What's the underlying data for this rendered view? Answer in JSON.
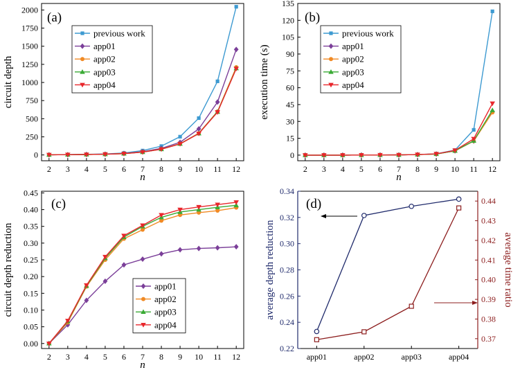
{
  "chart_data": [
    {
      "type": "line",
      "panel_label": "(a)",
      "xlabel": "n",
      "ylabel": "circuit depth",
      "x": [
        2,
        3,
        4,
        5,
        6,
        7,
        8,
        9,
        10,
        11,
        12
      ],
      "xlim": [
        1.6,
        12.4
      ],
      "ylim": [
        -80,
        2090
      ],
      "xticks": [
        "2",
        "3",
        "4",
        "5",
        "6",
        "7",
        "8",
        "9",
        "10",
        "11",
        "12"
      ],
      "yticks": [
        "0",
        "250",
        "500",
        "750",
        "1000",
        "1250",
        "1500",
        "1750",
        "2000"
      ],
      "legend_position": "upper-left",
      "series": [
        {
          "name": "previous work",
          "color": "#3d9ad1",
          "marker": "square",
          "values": [
            2,
            5,
            9,
            14,
            27,
            60,
            122,
            252,
            508,
            1016,
            2045
          ]
        },
        {
          "name": "app01",
          "color": "#7b3f99",
          "marker": "diamond",
          "values": [
            2,
            4,
            7,
            11,
            21,
            45,
            91,
            175,
            360,
            730,
            1455
          ]
        },
        {
          "name": "app02",
          "color": "#f08a24",
          "marker": "circle",
          "values": [
            2,
            4,
            6,
            10,
            19,
            40,
            80,
            155,
            300,
            600,
            1210
          ]
        },
        {
          "name": "app03",
          "color": "#3aaa35",
          "marker": "triangle-up",
          "values": [
            2,
            4,
            6,
            10,
            19,
            40,
            80,
            153,
            297,
            595,
            1195
          ]
        },
        {
          "name": "app04",
          "color": "#e8262b",
          "marker": "triangle-down",
          "values": [
            2,
            4,
            6,
            10,
            18,
            39,
            79,
            152,
            295,
            590,
            1190
          ]
        }
      ]
    },
    {
      "type": "line",
      "panel_label": "(b)",
      "xlabel": "n",
      "ylabel": "execution time (s)",
      "x": [
        2,
        3,
        4,
        5,
        6,
        7,
        8,
        9,
        10,
        11,
        12
      ],
      "xlim": [
        1.6,
        12.4
      ],
      "ylim": [
        -5,
        135
      ],
      "xticks": [
        "2",
        "3",
        "4",
        "5",
        "6",
        "7",
        "8",
        "9",
        "10",
        "11",
        "12"
      ],
      "yticks": [
        "0",
        "15",
        "30",
        "45",
        "60",
        "75",
        "90",
        "105",
        "120",
        "135"
      ],
      "legend_position": "upper-left",
      "series": [
        {
          "name": "previous work",
          "color": "#3d9ad1",
          "marker": "square",
          "values": [
            0,
            0,
            0,
            0.05,
            0.1,
            0.2,
            0.5,
            1.2,
            4.5,
            22.5,
            128
          ]
        },
        {
          "name": "app01",
          "color": "#7b3f99",
          "marker": "diamond",
          "values": [
            0,
            0,
            0,
            0.05,
            0.1,
            0.2,
            0.5,
            1.0,
            3.8,
            12.5,
            39
          ]
        },
        {
          "name": "app02",
          "color": "#f08a24",
          "marker": "circle",
          "values": [
            0,
            0,
            0,
            0.05,
            0.1,
            0.2,
            0.5,
            1.0,
            3.8,
            12.5,
            38
          ]
        },
        {
          "name": "app03",
          "color": "#3aaa35",
          "marker": "triangle-up",
          "values": [
            0,
            0,
            0,
            0.05,
            0.1,
            0.2,
            0.5,
            1.0,
            3.8,
            12.8,
            40
          ]
        },
        {
          "name": "app04",
          "color": "#e8262b",
          "marker": "triangle-down",
          "values": [
            0,
            0,
            0,
            0.05,
            0.1,
            0.2,
            0.5,
            1.1,
            4.2,
            14.5,
            46
          ]
        }
      ]
    },
    {
      "type": "line",
      "panel_label": "(c)",
      "xlabel": "n",
      "ylabel": "circuit depth reduction",
      "x": [
        2,
        3,
        4,
        5,
        6,
        7,
        8,
        9,
        10,
        11,
        12
      ],
      "xlim": [
        1.6,
        12.4
      ],
      "ylim": [
        -0.015,
        0.455
      ],
      "xticks": [
        "2",
        "3",
        "4",
        "5",
        "6",
        "7",
        "8",
        "9",
        "10",
        "11",
        "12"
      ],
      "yticks": [
        "0.00",
        "0.05",
        "0.10",
        "0.15",
        "0.20",
        "0.25",
        "0.30",
        "0.35",
        "0.40",
        "0.45"
      ],
      "legend_position": "lower-right",
      "series": [
        {
          "name": "app01",
          "color": "#7b3f99",
          "marker": "diamond",
          "values": [
            0,
            0.056,
            0.129,
            0.186,
            0.235,
            0.252,
            0.268,
            0.28,
            0.284,
            0.286,
            0.289
          ]
        },
        {
          "name": "app02",
          "color": "#f08a24",
          "marker": "circle",
          "values": [
            0,
            0.063,
            0.17,
            0.25,
            0.313,
            0.34,
            0.367,
            0.384,
            0.391,
            0.397,
            0.406
          ]
        },
        {
          "name": "app03",
          "color": "#3aaa35",
          "marker": "triangle-up",
          "values": [
            0,
            0.066,
            0.172,
            0.255,
            0.318,
            0.35,
            0.377,
            0.393,
            0.4,
            0.407,
            0.413
          ]
        },
        {
          "name": "app04",
          "color": "#e8262b",
          "marker": "triangle-down",
          "values": [
            0,
            0.068,
            0.174,
            0.259,
            0.322,
            0.353,
            0.384,
            0.4,
            0.408,
            0.415,
            0.422
          ]
        }
      ]
    },
    {
      "type": "line",
      "panel_label": "(d)",
      "categories": [
        "app01",
        "app02",
        "app03",
        "app04"
      ],
      "xlim": [
        -0.4,
        3.4
      ],
      "left_axis": {
        "label": "average depth reduction",
        "color": "#1f2a6b",
        "ylim": [
          0.22,
          0.34
        ],
        "yticks": [
          "0.22",
          "0.24",
          "0.26",
          "0.28",
          "0.30",
          "0.32",
          "0.34"
        ]
      },
      "right_axis": {
        "label": "average time ratio",
        "color": "#8c1d1d",
        "ylim": [
          0.365,
          0.445
        ],
        "yticks": [
          "0.37",
          "0.38",
          "0.39",
          "0.40",
          "0.41",
          "0.42",
          "0.43",
          "0.44"
        ]
      },
      "series": [
        {
          "name": "average depth reduction",
          "axis": "left",
          "color": "#1f2a6b",
          "marker": "circle-open",
          "values": [
            0.233,
            0.3215,
            0.3285,
            0.334
          ]
        },
        {
          "name": "average time ratio",
          "axis": "right",
          "color": "#8c1d1d",
          "marker": "square-open",
          "values": [
            0.3695,
            0.3735,
            0.3865,
            0.4365
          ]
        }
      ],
      "annotations": [
        "left arrow points to left axis (depth)",
        "right arrow points to right axis (time)"
      ]
    }
  ]
}
